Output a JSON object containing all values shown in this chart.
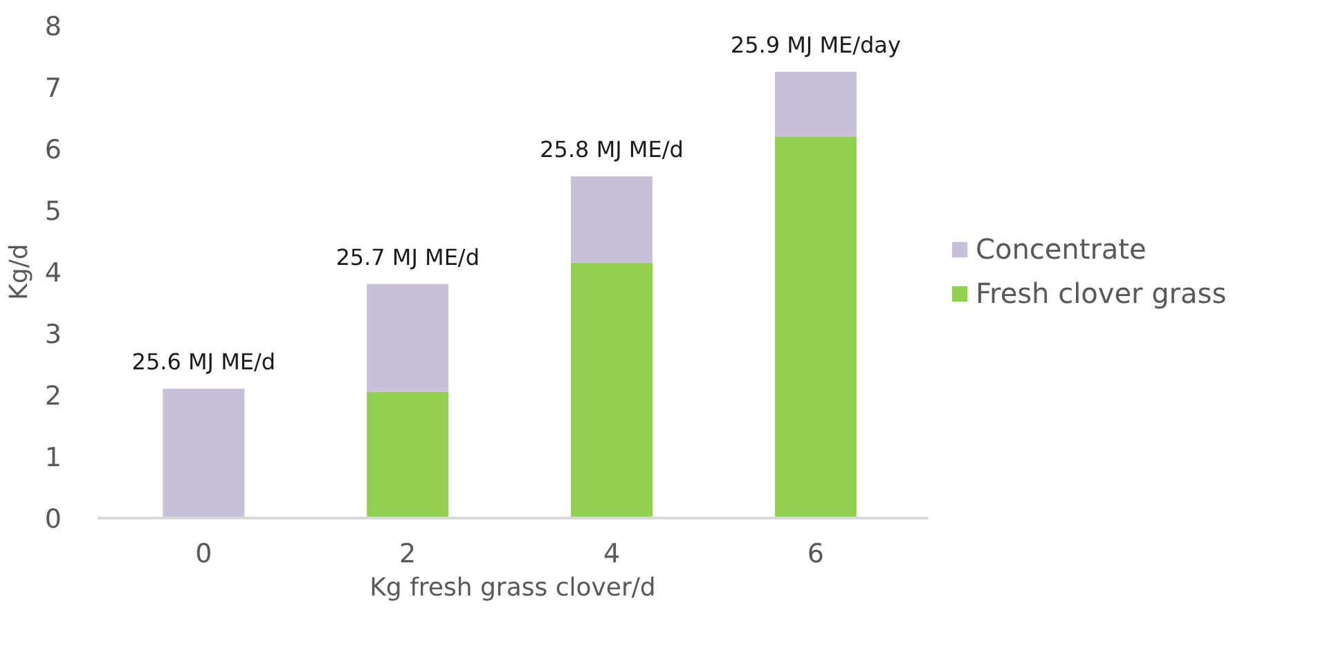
{
  "chart_data": {
    "type": "bar",
    "stacked": true,
    "categories": [
      "0",
      "2",
      "4",
      "6"
    ],
    "series": [
      {
        "name": "Fresh clover grass",
        "color": "#92d050",
        "values": [
          0,
          2.05,
          4.15,
          6.2
        ]
      },
      {
        "name": "Concentrate",
        "color": "#c8c0d9",
        "values": [
          2.1,
          1.75,
          1.4,
          1.05
        ]
      }
    ],
    "xlabel": "Kg fresh grass clover/d",
    "ylabel": "Kg/d",
    "ylim": [
      0,
      8
    ],
    "yticks": [
      0,
      1,
      2,
      3,
      4,
      5,
      6,
      7,
      8
    ],
    "grid": false,
    "legend": "right",
    "annotations": [
      {
        "text": "25.6 MJ ME/d",
        "x": "0",
        "y": 2.1
      },
      {
        "text": "25.7 MJ ME/d",
        "x": "2",
        "y": 3.8
      },
      {
        "text": "25.8 MJ ME/d",
        "x": "4",
        "y": 5.55
      },
      {
        "text": "25.9 MJ ME/day",
        "x": "6",
        "y": 7.25
      }
    ]
  }
}
